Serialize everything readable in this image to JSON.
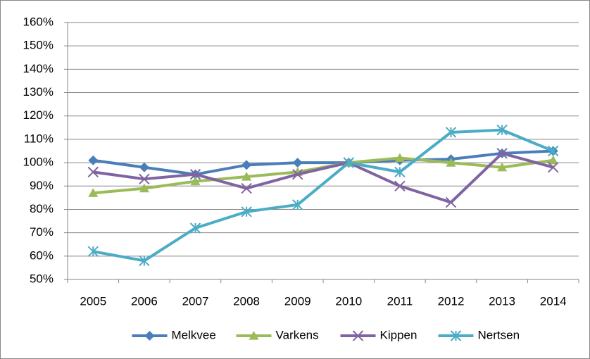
{
  "chart_data": {
    "type": "line",
    "categories": [
      "2005",
      "2006",
      "2007",
      "2008",
      "2009",
      "2010",
      "2011",
      "2012",
      "2013",
      "2014"
    ],
    "series": [
      {
        "name": "Melkvee",
        "color": "#4a7ebb",
        "marker": "diamond",
        "values": [
          101,
          98,
          95,
          99,
          100,
          100,
          101,
          101.5,
          104,
          105
        ]
      },
      {
        "name": "Varkens",
        "color": "#9bbb59",
        "marker": "triangle",
        "values": [
          87,
          89,
          92,
          94,
          96,
          100,
          102,
          100,
          98,
          101
        ]
      },
      {
        "name": "Kippen",
        "color": "#8064a2",
        "marker": "x",
        "values": [
          96,
          93,
          95,
          89,
          95,
          100,
          90,
          83,
          104,
          98
        ]
      },
      {
        "name": "Nertsen",
        "color": "#4bacc6",
        "marker": "star",
        "values": [
          62,
          58,
          72,
          79,
          82,
          100,
          96,
          113,
          114,
          105
        ]
      }
    ],
    "ylim": [
      50,
      160
    ],
    "yticks": [
      {
        "value": 50,
        "label": "50%"
      },
      {
        "value": 60,
        "label": "60%"
      },
      {
        "value": 70,
        "label": "70%"
      },
      {
        "value": 80,
        "label": "80%"
      },
      {
        "value": 90,
        "label": "90%"
      },
      {
        "value": 100,
        "label": "100%"
      },
      {
        "value": 110,
        "label": "110%"
      },
      {
        "value": 120,
        "label": "120%"
      },
      {
        "value": 130,
        "label": "130%"
      },
      {
        "value": 140,
        "label": "140%"
      },
      {
        "value": 150,
        "label": "150%"
      },
      {
        "value": 160,
        "label": "160%"
      }
    ],
    "grid": true,
    "legend": "bottom"
  }
}
